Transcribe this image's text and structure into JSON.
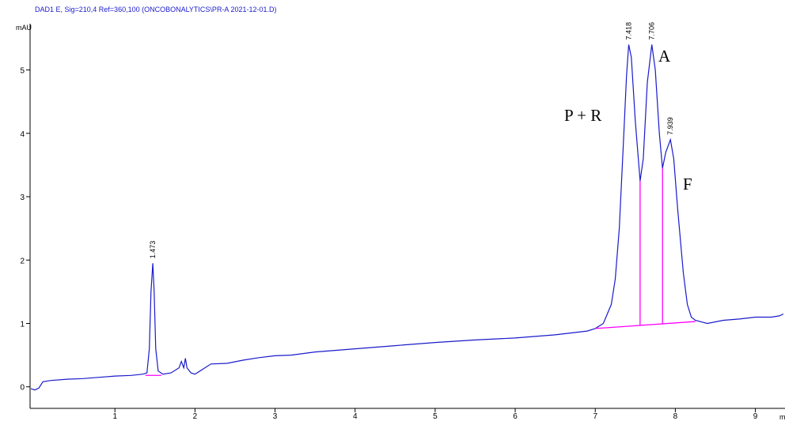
{
  "chart_data": {
    "type": "line",
    "title": "DAD1 E, Sig=210,4 Ref=360,100 (ONCOBONALYTICS\\PR-A 2021-12-01.D)",
    "y_label": "mAU",
    "x_label": "min",
    "xlim": [
      -0.06,
      9.37
    ],
    "ylim": [
      -0.34,
      5.73
    ],
    "xticks": [
      1,
      2,
      3,
      4,
      5,
      6,
      7,
      8,
      9
    ],
    "yticks": [
      0,
      1,
      2,
      3,
      4,
      5
    ],
    "series": [
      {
        "name": "DAD1 E",
        "color": "#1a1acc",
        "x": [
          -0.05,
          0.0,
          0.05,
          0.1,
          0.2,
          0.4,
          0.6,
          0.8,
          1.0,
          1.2,
          1.35,
          1.4,
          1.43,
          1.45,
          1.473,
          1.49,
          1.51,
          1.54,
          1.6,
          1.7,
          1.8,
          1.83,
          1.86,
          1.88,
          1.9,
          1.95,
          2.0,
          2.1,
          2.2,
          2.4,
          2.6,
          2.8,
          3.0,
          3.2,
          3.5,
          4.0,
          4.5,
          5.0,
          5.5,
          6.0,
          6.5,
          6.9,
          7.0,
          7.1,
          7.2,
          7.25,
          7.3,
          7.35,
          7.39,
          7.418,
          7.45,
          7.5,
          7.56,
          7.6,
          7.65,
          7.706,
          7.75,
          7.8,
          7.84,
          7.88,
          7.939,
          7.98,
          8.03,
          8.1,
          8.15,
          8.2,
          8.25,
          8.4,
          8.6,
          8.8,
          9.0,
          9.2,
          9.3,
          9.35
        ],
        "values": [
          -0.03,
          -0.05,
          -0.02,
          0.08,
          0.1,
          0.12,
          0.13,
          0.15,
          0.17,
          0.18,
          0.2,
          0.22,
          0.6,
          1.5,
          1.95,
          1.5,
          0.6,
          0.25,
          0.2,
          0.22,
          0.3,
          0.4,
          0.3,
          0.45,
          0.3,
          0.22,
          0.2,
          0.28,
          0.36,
          0.37,
          0.42,
          0.46,
          0.49,
          0.5,
          0.55,
          0.6,
          0.65,
          0.7,
          0.74,
          0.77,
          0.82,
          0.88,
          0.92,
          1.0,
          1.3,
          1.7,
          2.5,
          3.8,
          4.9,
          5.4,
          5.2,
          4.2,
          3.25,
          3.6,
          4.8,
          5.4,
          5.0,
          4.0,
          3.45,
          3.7,
          3.9,
          3.6,
          2.8,
          1.8,
          1.3,
          1.1,
          1.05,
          1.0,
          1.05,
          1.07,
          1.1,
          1.1,
          1.12,
          1.15
        ]
      }
    ],
    "integration_color": "#ff00ff",
    "integration": [
      {
        "x": [
          1.38,
          1.58
        ],
        "y": [
          0.18,
          0.18
        ]
      },
      {
        "x": [
          7.0,
          8.25
        ],
        "y": [
          0.92,
          1.03
        ]
      },
      {
        "x": [
          7.56,
          7.56
        ],
        "y": [
          0.97,
          3.25
        ]
      },
      {
        "x": [
          7.84,
          7.84
        ],
        "y": [
          0.99,
          3.45
        ]
      }
    ],
    "peaks": [
      1.473,
      7.418,
      7.706,
      7.939
    ],
    "annotations": [
      "P + R",
      "A",
      "F"
    ]
  }
}
